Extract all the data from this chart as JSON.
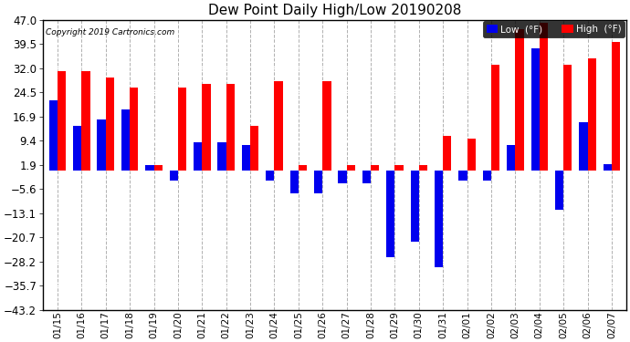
{
  "title": "Dew Point Daily High/Low 20190208",
  "copyright": "Copyright 2019 Cartronics.com",
  "dates": [
    "01/15",
    "01/16",
    "01/17",
    "01/18",
    "01/19",
    "01/20",
    "01/21",
    "01/22",
    "01/23",
    "01/24",
    "01/25",
    "01/26",
    "01/27",
    "01/28",
    "01/29",
    "01/30",
    "01/31",
    "02/01",
    "02/02",
    "02/03",
    "02/04",
    "02/05",
    "02/06",
    "02/07"
  ],
  "highs": [
    31.0,
    31.0,
    29.0,
    26.0,
    1.9,
    26.0,
    27.0,
    27.0,
    14.0,
    28.0,
    1.9,
    28.0,
    1.9,
    1.9,
    1.9,
    1.9,
    11.0,
    10.0,
    33.0,
    44.0,
    46.0,
    33.0,
    35.0,
    40.0
  ],
  "lows": [
    22.0,
    14.0,
    16.0,
    19.0,
    1.9,
    -3.0,
    9.0,
    9.0,
    8.0,
    -3.0,
    -7.0,
    -7.0,
    -4.0,
    -4.0,
    -27.0,
    -22.0,
    -30.0,
    -3.0,
    -3.0,
    8.0,
    38.0,
    -12.0,
    15.0,
    2.0
  ],
  "ylim_min": -43.2,
  "ylim_max": 47.0,
  "yticks": [
    47.0,
    39.5,
    32.0,
    24.5,
    16.9,
    9.4,
    1.9,
    -5.6,
    -13.1,
    -20.7,
    -28.2,
    -35.7,
    -43.2
  ],
  "high_color": "#ff0000",
  "low_color": "#0000ee",
  "bar_width": 0.35,
  "bg_color": "#ffffff",
  "grid_color": "#b0b0b0"
}
